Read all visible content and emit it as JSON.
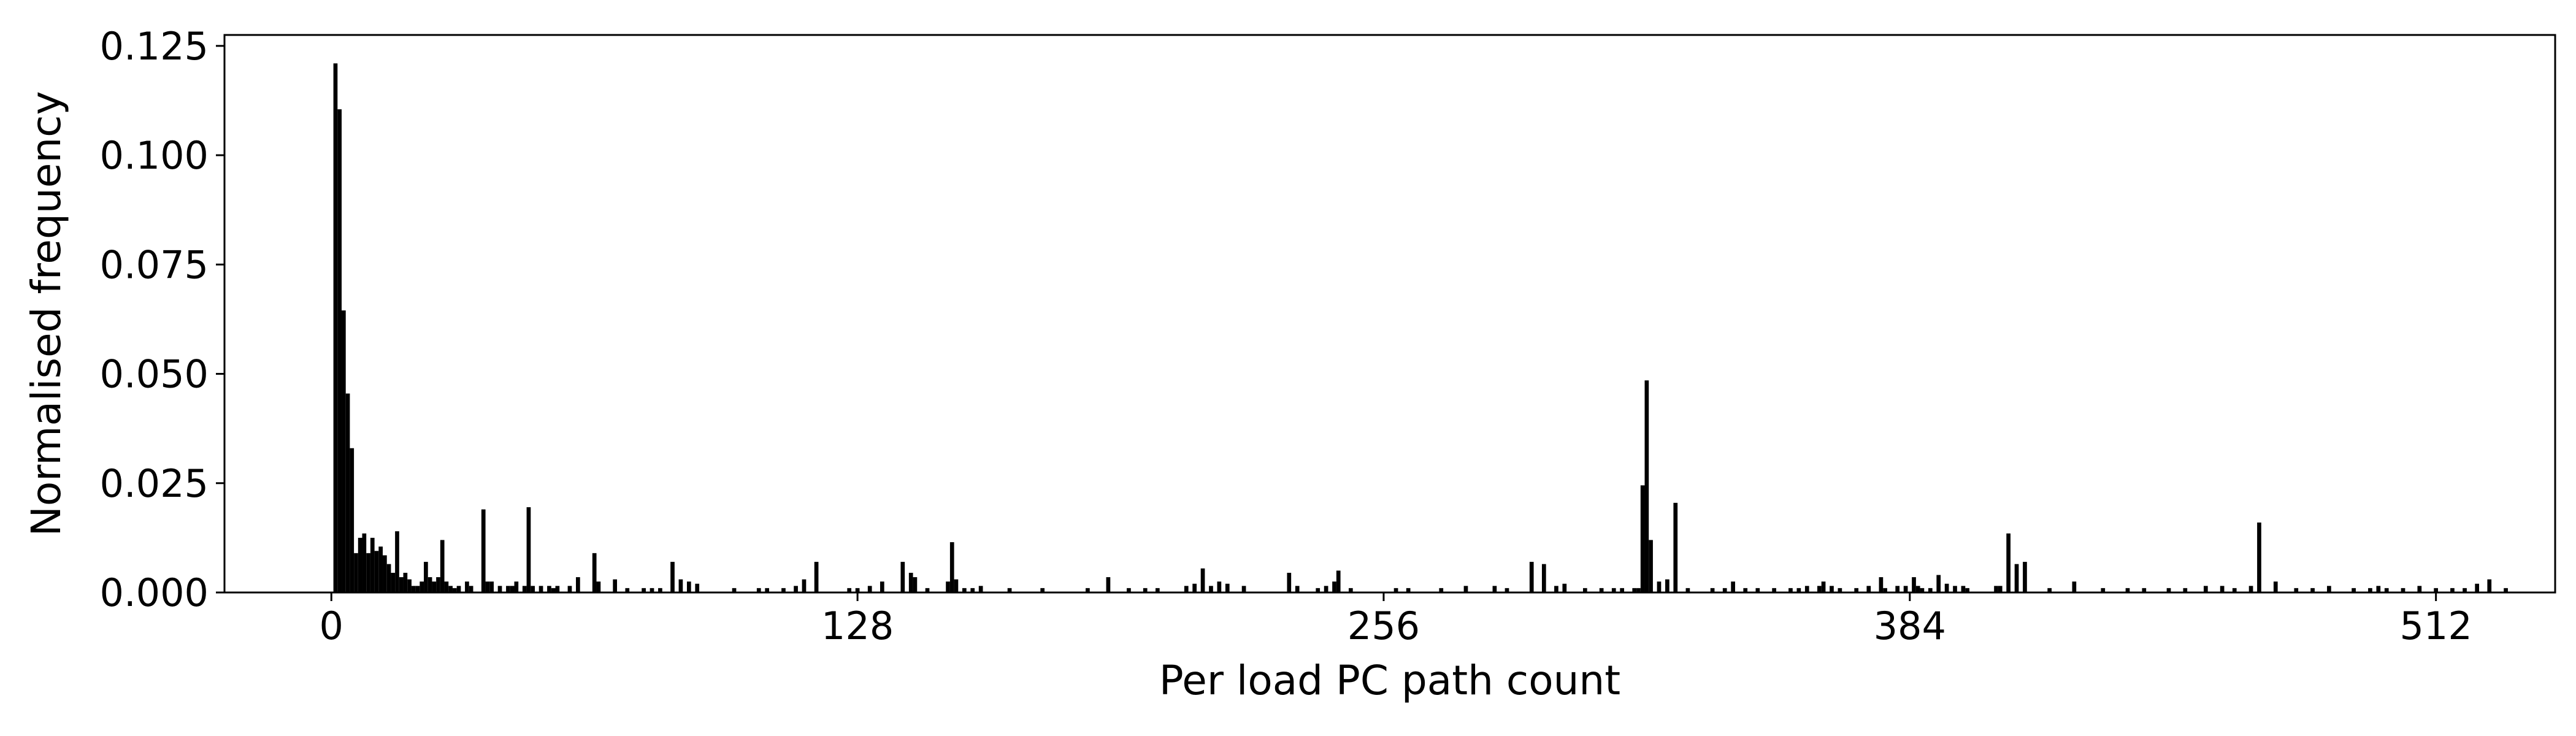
{
  "chart_data": {
    "type": "bar",
    "title": "",
    "xlabel": "Per load PC path count",
    "ylabel": "Normalised frequency",
    "xlim": [
      -26,
      541
    ],
    "ylim": [
      0,
      0.1275
    ],
    "xticks": [
      0,
      128,
      256,
      384,
      512
    ],
    "yticks": [
      0.0,
      0.025,
      0.05,
      0.075,
      0.1,
      0.125
    ],
    "ytick_labels": [
      "0.000",
      "0.025",
      "0.050",
      "0.075",
      "0.100",
      "0.125"
    ],
    "grid": false,
    "bar_color": "#000000",
    "points": [
      [
        1,
        0.121
      ],
      [
        2,
        0.1105
      ],
      [
        3,
        0.0645
      ],
      [
        4,
        0.0455
      ],
      [
        5,
        0.033
      ],
      [
        6,
        0.009
      ],
      [
        7,
        0.0125
      ],
      [
        8,
        0.0135
      ],
      [
        9,
        0.009
      ],
      [
        10,
        0.0125
      ],
      [
        11,
        0.0095
      ],
      [
        12,
        0.0105
      ],
      [
        13,
        0.0085
      ],
      [
        14,
        0.0065
      ],
      [
        15,
        0.0045
      ],
      [
        16,
        0.014
      ],
      [
        17,
        0.0035
      ],
      [
        18,
        0.0045
      ],
      [
        19,
        0.003
      ],
      [
        20,
        0.0015
      ],
      [
        21,
        0.0015
      ],
      [
        22,
        0.0025
      ],
      [
        23,
        0.007
      ],
      [
        24,
        0.0035
      ],
      [
        25,
        0.0025
      ],
      [
        26,
        0.0035
      ],
      [
        27,
        0.012
      ],
      [
        28,
        0.0025
      ],
      [
        29,
        0.0015
      ],
      [
        30,
        0.001
      ],
      [
        31,
        0.0015
      ],
      [
        33,
        0.0025
      ],
      [
        34,
        0.0015
      ],
      [
        37,
        0.019
      ],
      [
        38,
        0.0025
      ],
      [
        39,
        0.0025
      ],
      [
        41,
        0.0015
      ],
      [
        43,
        0.0015
      ],
      [
        44,
        0.0015
      ],
      [
        45,
        0.0025
      ],
      [
        47,
        0.0015
      ],
      [
        48,
        0.0195
      ],
      [
        49,
        0.0015
      ],
      [
        51,
        0.0015
      ],
      [
        53,
        0.0015
      ],
      [
        54,
        0.001
      ],
      [
        55,
        0.0015
      ],
      [
        58,
        0.0015
      ],
      [
        60,
        0.0035
      ],
      [
        64,
        0.009
      ],
      [
        65,
        0.0025
      ],
      [
        69,
        0.003
      ],
      [
        72,
        0.001
      ],
      [
        76,
        0.001
      ],
      [
        78,
        0.001
      ],
      [
        80,
        0.001
      ],
      [
        83,
        0.007
      ],
      [
        85,
        0.003
      ],
      [
        87,
        0.0025
      ],
      [
        89,
        0.002
      ],
      [
        98,
        0.001
      ],
      [
        104,
        0.001
      ],
      [
        106,
        0.001
      ],
      [
        110,
        0.001
      ],
      [
        113,
        0.0015
      ],
      [
        115,
        0.003
      ],
      [
        118,
        0.007
      ],
      [
        126,
        0.001
      ],
      [
        128,
        0.001
      ],
      [
        131,
        0.0015
      ],
      [
        134,
        0.0025
      ],
      [
        139,
        0.007
      ],
      [
        141,
        0.0045
      ],
      [
        142,
        0.0035
      ],
      [
        145,
        0.001
      ],
      [
        150,
        0.0025
      ],
      [
        151,
        0.0115
      ],
      [
        152,
        0.003
      ],
      [
        154,
        0.001
      ],
      [
        156,
        0.001
      ],
      [
        158,
        0.0015
      ],
      [
        165,
        0.001
      ],
      [
        173,
        0.001
      ],
      [
        184,
        0.001
      ],
      [
        189,
        0.0035
      ],
      [
        194,
        0.001
      ],
      [
        198,
        0.001
      ],
      [
        201,
        0.001
      ],
      [
        208,
        0.0015
      ],
      [
        210,
        0.002
      ],
      [
        212,
        0.0055
      ],
      [
        214,
        0.0015
      ],
      [
        216,
        0.0025
      ],
      [
        218,
        0.002
      ],
      [
        222,
        0.0015
      ],
      [
        233,
        0.0045
      ],
      [
        235,
        0.0015
      ],
      [
        240,
        0.001
      ],
      [
        242,
        0.0015
      ],
      [
        244,
        0.0025
      ],
      [
        245,
        0.005
      ],
      [
        248,
        0.001
      ],
      [
        259,
        0.001
      ],
      [
        262,
        0.001
      ],
      [
        270,
        0.001
      ],
      [
        276,
        0.0015
      ],
      [
        283,
        0.0015
      ],
      [
        286,
        0.001
      ],
      [
        292,
        0.007
      ],
      [
        295,
        0.0065
      ],
      [
        298,
        0.0015
      ],
      [
        300,
        0.002
      ],
      [
        305,
        0.001
      ],
      [
        309,
        0.001
      ],
      [
        312,
        0.001
      ],
      [
        314,
        0.001
      ],
      [
        317,
        0.001
      ],
      [
        318,
        0.001
      ],
      [
        319,
        0.0245
      ],
      [
        320,
        0.0485
      ],
      [
        321,
        0.012
      ],
      [
        323,
        0.0025
      ],
      [
        325,
        0.003
      ],
      [
        327,
        0.0205
      ],
      [
        330,
        0.001
      ],
      [
        336,
        0.001
      ],
      [
        339,
        0.001
      ],
      [
        341,
        0.0025
      ],
      [
        344,
        0.001
      ],
      [
        347,
        0.001
      ],
      [
        351,
        0.001
      ],
      [
        355,
        0.001
      ],
      [
        357,
        0.001
      ],
      [
        359,
        0.0015
      ],
      [
        362,
        0.0015
      ],
      [
        363,
        0.0025
      ],
      [
        365,
        0.0015
      ],
      [
        367,
        0.001
      ],
      [
        371,
        0.001
      ],
      [
        374,
        0.0015
      ],
      [
        377,
        0.0035
      ],
      [
        378,
        0.001
      ],
      [
        381,
        0.0015
      ],
      [
        383,
        0.0015
      ],
      [
        385,
        0.0035
      ],
      [
        386,
        0.0015
      ],
      [
        387,
        0.001
      ],
      [
        389,
        0.001
      ],
      [
        391,
        0.004
      ],
      [
        393,
        0.002
      ],
      [
        395,
        0.0015
      ],
      [
        397,
        0.0015
      ],
      [
        398,
        0.001
      ],
      [
        405,
        0.0015
      ],
      [
        406,
        0.0015
      ],
      [
        408,
        0.0135
      ],
      [
        410,
        0.0065
      ],
      [
        412,
        0.007
      ],
      [
        418,
        0.001
      ],
      [
        424,
        0.0025
      ],
      [
        431,
        0.001
      ],
      [
        437,
        0.001
      ],
      [
        441,
        0.001
      ],
      [
        447,
        0.001
      ],
      [
        451,
        0.001
      ],
      [
        456,
        0.0015
      ],
      [
        460,
        0.0015
      ],
      [
        463,
        0.001
      ],
      [
        467,
        0.0015
      ],
      [
        469,
        0.016
      ],
      [
        473,
        0.0025
      ],
      [
        478,
        0.001
      ],
      [
        482,
        0.001
      ],
      [
        486,
        0.0015
      ],
      [
        492,
        0.001
      ],
      [
        496,
        0.001
      ],
      [
        498,
        0.0015
      ],
      [
        500,
        0.001
      ],
      [
        504,
        0.001
      ],
      [
        508,
        0.0015
      ],
      [
        512,
        0.001
      ],
      [
        516,
        0.001
      ],
      [
        519,
        0.001
      ],
      [
        522,
        0.002
      ],
      [
        525,
        0.003
      ],
      [
        529,
        0.001
      ]
    ]
  }
}
